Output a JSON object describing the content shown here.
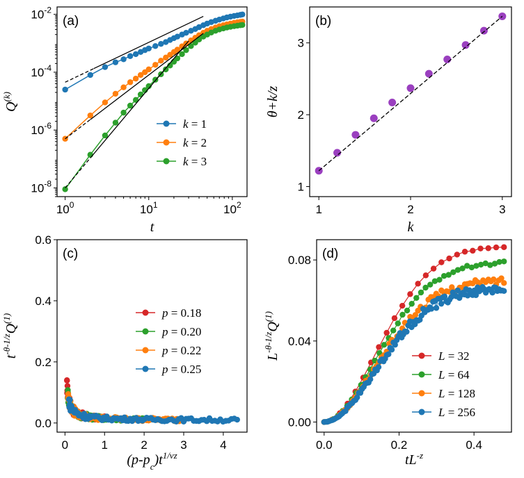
{
  "colors": {
    "blue": "#1f77b4",
    "orange": "#ff7f0e",
    "green": "#2ca02c",
    "red": "#d62728",
    "purple": "#9a3fbf"
  },
  "chart_data": [
    {
      "id": "a",
      "type": "scatter",
      "panel_label": "(a)",
      "xlabel": "t",
      "ylabel": "Q(k)",
      "xscale": "log",
      "yscale": "log",
      "xlim": [
        0.8,
        150
      ],
      "ylim": [
        5e-09,
        0.018
      ],
      "xticks": [
        {
          "v": 1,
          "b": "10",
          "e": "0"
        },
        {
          "v": 10,
          "b": "10",
          "e": "1"
        },
        {
          "v": 100,
          "b": "10",
          "e": "2"
        }
      ],
      "yticks": [
        {
          "v": 1e-08,
          "b": "10",
          "e": "-8"
        },
        {
          "v": 1e-06,
          "b": "10",
          "e": "-6"
        },
        {
          "v": 0.0001,
          "b": "10",
          "e": "-4"
        },
        {
          "v": 0.01,
          "b": "10",
          "e": "-2"
        }
      ],
      "legend": {
        "position": "lower-right",
        "entries": [
          {
            "var": "k",
            "value": "1"
          },
          {
            "var": "k",
            "value": "2"
          },
          {
            "var": "k",
            "value": "3"
          }
        ]
      },
      "series": [
        {
          "color": "blue",
          "points": [
            [
              1,
              2.5e-05
            ],
            [
              2,
              8e-05
            ],
            [
              3,
              0.00015
            ],
            [
              4,
              0.00022
            ],
            [
              5,
              0.00028
            ],
            [
              6,
              0.00036
            ],
            [
              7,
              0.00042
            ],
            [
              8,
              0.0005
            ],
            [
              9,
              0.00058
            ],
            [
              10,
              0.00066
            ],
            [
              12,
              0.0008
            ],
            [
              14,
              0.00095
            ],
            [
              16,
              0.0011
            ],
            [
              18,
              0.0013
            ],
            [
              20,
              0.0015
            ],
            [
              22,
              0.0017
            ],
            [
              25,
              0.002
            ],
            [
              28,
              0.0023
            ],
            [
              32,
              0.0027
            ],
            [
              36,
              0.0031
            ],
            [
              40,
              0.0036
            ],
            [
              45,
              0.0042
            ],
            [
              50,
              0.0048
            ],
            [
              56,
              0.0054
            ],
            [
              63,
              0.006
            ],
            [
              70,
              0.0066
            ],
            [
              78,
              0.0072
            ],
            [
              86,
              0.0078
            ],
            [
              95,
              0.0083
            ],
            [
              105,
              0.0088
            ],
            [
              115,
              0.0092
            ],
            [
              125,
              0.0096
            ],
            [
              132,
              0.0099
            ]
          ]
        },
        {
          "color": "orange",
          "points": [
            [
              1,
              5e-07
            ],
            [
              2,
              3.2e-06
            ],
            [
              3,
              9e-06
            ],
            [
              4,
              1.8e-05
            ],
            [
              5,
              3e-05
            ],
            [
              6,
              4.5e-05
            ],
            [
              7,
              6e-05
            ],
            [
              8,
              8e-05
            ],
            [
              9,
              0.0001
            ],
            [
              10,
              0.000125
            ],
            [
              12,
              0.00018
            ],
            [
              14,
              0.00025
            ],
            [
              16,
              0.00032
            ],
            [
              18,
              0.0004
            ],
            [
              20,
              0.0005
            ],
            [
              22,
              0.0006
            ],
            [
              25,
              0.00078
            ],
            [
              28,
              0.00098
            ],
            [
              32,
              0.00125
            ],
            [
              36,
              0.00155
            ],
            [
              40,
              0.0019
            ],
            [
              45,
              0.0023
            ],
            [
              50,
              0.0027
            ],
            [
              56,
              0.0031
            ],
            [
              63,
              0.0035
            ],
            [
              70,
              0.0039
            ],
            [
              78,
              0.0042
            ],
            [
              86,
              0.0045
            ],
            [
              95,
              0.0048
            ],
            [
              105,
              0.0051
            ],
            [
              115,
              0.0053
            ],
            [
              125,
              0.0055
            ],
            [
              132,
              0.0056
            ]
          ]
        },
        {
          "color": "green",
          "points": [
            [
              1,
              9e-09
            ],
            [
              2,
              1.4e-07
            ],
            [
              3,
              6.5e-07
            ],
            [
              4,
              1.8e-06
            ],
            [
              5,
              4e-06
            ],
            [
              6,
              7e-06
            ],
            [
              7,
              1.1e-05
            ],
            [
              8,
              1.7e-05
            ],
            [
              9,
              2.4e-05
            ],
            [
              10,
              3.3e-05
            ],
            [
              12,
              5.5e-05
            ],
            [
              14,
              8.5e-05
            ],
            [
              16,
              0.000125
            ],
            [
              18,
              0.00017
            ],
            [
              20,
              0.00023
            ],
            [
              22,
              0.0003
            ],
            [
              25,
              0.00042
            ],
            [
              28,
              0.00058
            ],
            [
              32,
              0.0008
            ],
            [
              36,
              0.00105
            ],
            [
              40,
              0.00135
            ],
            [
              45,
              0.0017
            ],
            [
              50,
              0.002
            ],
            [
              56,
              0.00235
            ],
            [
              63,
              0.0027
            ],
            [
              70,
              0.003
            ],
            [
              78,
              0.00325
            ],
            [
              86,
              0.0035
            ],
            [
              95,
              0.0037
            ],
            [
              105,
              0.0039
            ],
            [
              115,
              0.00405
            ],
            [
              125,
              0.0042
            ],
            [
              132,
              0.0043
            ]
          ]
        }
      ],
      "fits": [
        {
          "points": [
            [
              1,
              4.5e-05
            ],
            [
              45,
              0.0085
            ]
          ],
          "dashed_until": 2.2
        },
        {
          "points": [
            [
              1,
              5e-07
            ],
            [
              45,
              0.0022
            ]
          ],
          "dashed_until": 2.0
        },
        {
          "points": [
            [
              1,
              1e-08
            ],
            [
              30,
              0.0012
            ]
          ],
          "dashed_until": 2.0
        }
      ]
    },
    {
      "id": "b",
      "type": "scatter",
      "panel_label": "(b)",
      "xlabel": "k",
      "ylabel": "θ+k/z",
      "xlim": [
        0.9,
        3.1
      ],
      "ylim": [
        0.86,
        3.5
      ],
      "xticks": [
        {
          "v": 1,
          "t": "1"
        },
        {
          "v": 2,
          "t": "2"
        },
        {
          "v": 3,
          "t": "3"
        }
      ],
      "yticks": [
        {
          "v": 1,
          "t": "1"
        },
        {
          "v": 2,
          "t": "2"
        },
        {
          "v": 3,
          "t": "3"
        }
      ],
      "series": [
        {
          "color": "purple",
          "points": [
            [
              1.0,
              1.22
            ],
            [
              1.2,
              1.47
            ],
            [
              1.4,
              1.72
            ],
            [
              1.6,
              1.95
            ],
            [
              1.8,
              2.17
            ],
            [
              2.0,
              2.37
            ],
            [
              2.2,
              2.57
            ],
            [
              2.4,
              2.77
            ],
            [
              2.6,
              2.97
            ],
            [
              2.8,
              3.17
            ],
            [
              3.0,
              3.37
            ]
          ]
        }
      ],
      "fits": [
        {
          "points": [
            [
              1.0,
              1.22
            ],
            [
              3.0,
              3.37
            ]
          ],
          "dashed_until": 3.0
        }
      ]
    },
    {
      "id": "c",
      "type": "scatter",
      "panel_label": "(c)",
      "xlabel": "(p-pc)t1/νz",
      "ylabel": "t-θ-1/zQ(1)",
      "xlim": [
        -0.2,
        4.6
      ],
      "ylim": [
        -0.03,
        0.6
      ],
      "xticks": [
        {
          "v": 0,
          "t": "0"
        },
        {
          "v": 1,
          "t": "1"
        },
        {
          "v": 2,
          "t": "2"
        },
        {
          "v": 3,
          "t": "3"
        },
        {
          "v": 4,
          "t": "4"
        }
      ],
      "yticks": [
        {
          "v": 0,
          "t": "0.0"
        },
        {
          "v": 0.2,
          "t": "0.2"
        },
        {
          "v": 0.4,
          "t": "0.4"
        },
        {
          "v": 0.6,
          "t": "0.6"
        }
      ],
      "legend": {
        "position": "center-right",
        "entries": [
          {
            "var": "p",
            "value": "0.18"
          },
          {
            "var": "p",
            "value": "0.20"
          },
          {
            "var": "p",
            "value": "0.22"
          },
          {
            "var": "p",
            "value": "0.25"
          }
        ]
      },
      "collapse": {
        "a": 0.0125,
        "c": 0.015,
        "noise": 0.012
      },
      "series": [
        {
          "color": "red",
          "x_range": [
            0.05,
            1.0
          ],
          "n": 60
        },
        {
          "color": "green",
          "x_range": [
            0.07,
            2.0
          ],
          "n": 70
        },
        {
          "color": "orange",
          "x_range": [
            0.08,
            3.0
          ],
          "n": 80
        },
        {
          "color": "blue",
          "x_range": [
            0.1,
            4.35
          ],
          "n": 95
        }
      ]
    },
    {
      "id": "d",
      "type": "scatter",
      "panel_label": "(d)",
      "xlabel": "tL-z",
      "ylabel": "L-θ-1/zQ(1)",
      "xlim": [
        -0.02,
        0.5
      ],
      "ylim": [
        -0.005,
        0.09
      ],
      "xticks": [
        {
          "v": 0,
          "t": "0.0"
        },
        {
          "v": 0.2,
          "t": "0.2"
        },
        {
          "v": 0.4,
          "t": "0.4"
        }
      ],
      "yticks": [
        {
          "v": 0,
          "t": "0.00"
        },
        {
          "v": 0.04,
          "t": "0.04"
        },
        {
          "v": 0.08,
          "t": "0.08"
        }
      ],
      "legend": {
        "position": "lower-right",
        "entries": [
          {
            "var": "L",
            "value": "32"
          },
          {
            "var": "L",
            "value": "64"
          },
          {
            "var": "L",
            "value": "128"
          },
          {
            "var": "L",
            "value": "256"
          }
        ]
      },
      "series": [
        {
          "color": "red",
          "n": 24,
          "sat": 0.087,
          "noise": 0.0006
        },
        {
          "color": "green",
          "n": 40,
          "sat": 0.079,
          "noise": 0.0015
        },
        {
          "color": "orange",
          "n": 70,
          "sat": 0.07,
          "noise": 0.0035
        },
        {
          "color": "blue",
          "n": 110,
          "sat": 0.066,
          "noise": 0.0045
        }
      ]
    }
  ]
}
